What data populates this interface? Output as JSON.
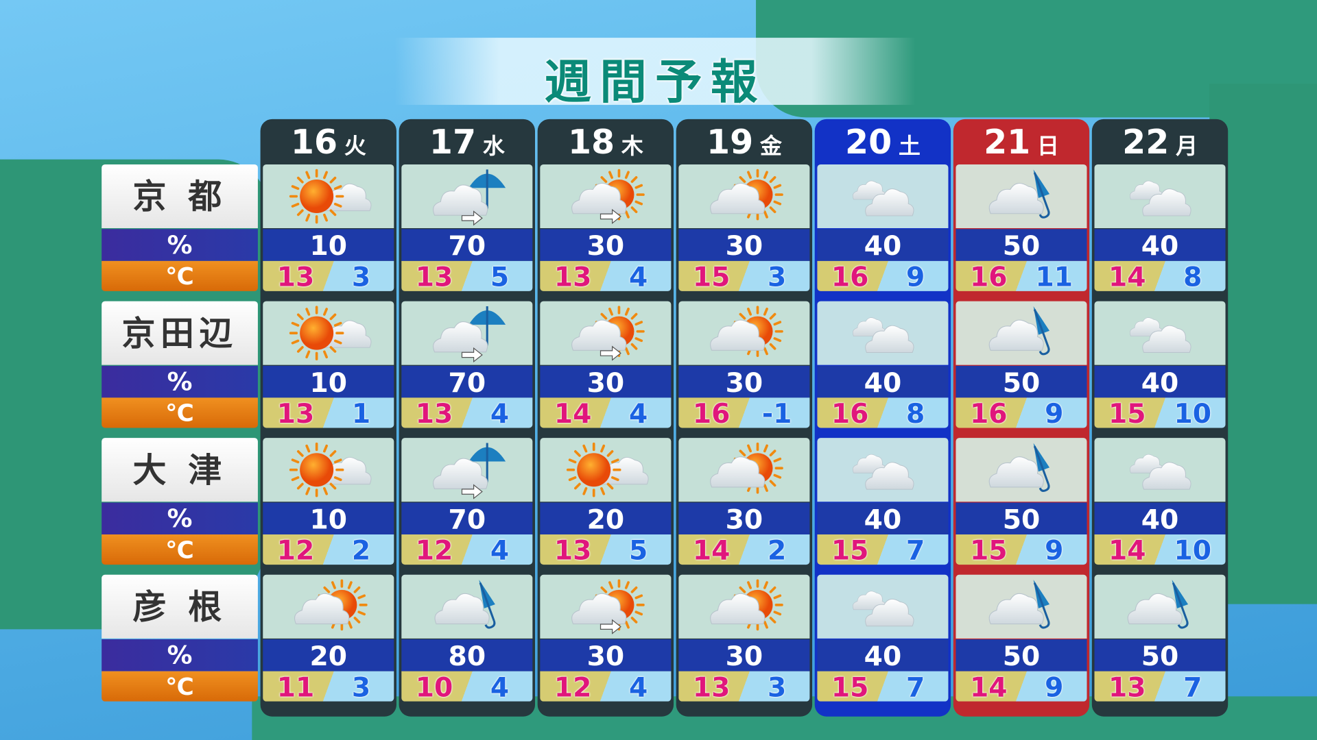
{
  "title": "週間予報",
  "colors": {
    "weekday": "#26383e",
    "saturday": "#1232c6",
    "sunday": "#c0282e",
    "high": "#e0167c",
    "low": "#1a62e2"
  },
  "row_labels": {
    "pct": "%",
    "deg": "℃"
  },
  "days": [
    {
      "date": "16",
      "weekday": "火",
      "kind": "weekday"
    },
    {
      "date": "17",
      "weekday": "水",
      "kind": "weekday"
    },
    {
      "date": "18",
      "weekday": "木",
      "kind": "weekday"
    },
    {
      "date": "19",
      "weekday": "金",
      "kind": "weekday"
    },
    {
      "date": "20",
      "weekday": "土",
      "kind": "saturday"
    },
    {
      "date": "21",
      "weekday": "日",
      "kind": "sunday"
    },
    {
      "date": "22",
      "weekday": "月",
      "kind": "weekday"
    }
  ],
  "cities": [
    {
      "name": "京 都",
      "forecast": [
        {
          "icon": "sunny-cloudy",
          "pop": "10",
          "high": "13",
          "low": "3"
        },
        {
          "icon": "cloudy-then-rain",
          "pop": "70",
          "high": "13",
          "low": "5"
        },
        {
          "icon": "cloudy-then-sunny",
          "pop": "30",
          "high": "13",
          "low": "4"
        },
        {
          "icon": "cloudy-sunny",
          "pop": "30",
          "high": "15",
          "low": "3"
        },
        {
          "icon": "cloudy",
          "pop": "40",
          "high": "16",
          "low": "9"
        },
        {
          "icon": "cloudy-rain",
          "pop": "50",
          "high": "16",
          "low": "11"
        },
        {
          "icon": "cloudy",
          "pop": "40",
          "high": "14",
          "low": "8"
        }
      ]
    },
    {
      "name": "京田辺",
      "forecast": [
        {
          "icon": "sunny-cloudy",
          "pop": "10",
          "high": "13",
          "low": "1"
        },
        {
          "icon": "cloudy-then-rain",
          "pop": "70",
          "high": "13",
          "low": "4"
        },
        {
          "icon": "cloudy-then-sunny",
          "pop": "30",
          "high": "14",
          "low": "4"
        },
        {
          "icon": "cloudy-sunny",
          "pop": "30",
          "high": "16",
          "low": "-1"
        },
        {
          "icon": "cloudy",
          "pop": "40",
          "high": "16",
          "low": "8"
        },
        {
          "icon": "cloudy-rain",
          "pop": "50",
          "high": "16",
          "low": "9"
        },
        {
          "icon": "cloudy",
          "pop": "40",
          "high": "15",
          "low": "10"
        }
      ]
    },
    {
      "name": "大 津",
      "forecast": [
        {
          "icon": "sunny-cloudy",
          "pop": "10",
          "high": "12",
          "low": "2"
        },
        {
          "icon": "cloudy-then-rain",
          "pop": "70",
          "high": "12",
          "low": "4"
        },
        {
          "icon": "sunny-cloudy",
          "pop": "20",
          "high": "13",
          "low": "5"
        },
        {
          "icon": "cloudy-sunny",
          "pop": "30",
          "high": "14",
          "low": "2"
        },
        {
          "icon": "cloudy",
          "pop": "40",
          "high": "15",
          "low": "7"
        },
        {
          "icon": "cloudy-rain",
          "pop": "50",
          "high": "15",
          "low": "9"
        },
        {
          "icon": "cloudy",
          "pop": "40",
          "high": "14",
          "low": "10"
        }
      ]
    },
    {
      "name": "彦 根",
      "forecast": [
        {
          "icon": "cloudy-sunny",
          "pop": "20",
          "high": "11",
          "low": "3"
        },
        {
          "icon": "cloudy-rain",
          "pop": "80",
          "high": "10",
          "low": "4"
        },
        {
          "icon": "cloudy-then-sunny",
          "pop": "30",
          "high": "12",
          "low": "4"
        },
        {
          "icon": "cloudy-sunny",
          "pop": "30",
          "high": "13",
          "low": "3"
        },
        {
          "icon": "cloudy",
          "pop": "40",
          "high": "15",
          "low": "7"
        },
        {
          "icon": "cloudy-rain",
          "pop": "50",
          "high": "14",
          "low": "9"
        },
        {
          "icon": "cloudy-rain",
          "pop": "50",
          "high": "13",
          "low": "7"
        }
      ]
    }
  ]
}
